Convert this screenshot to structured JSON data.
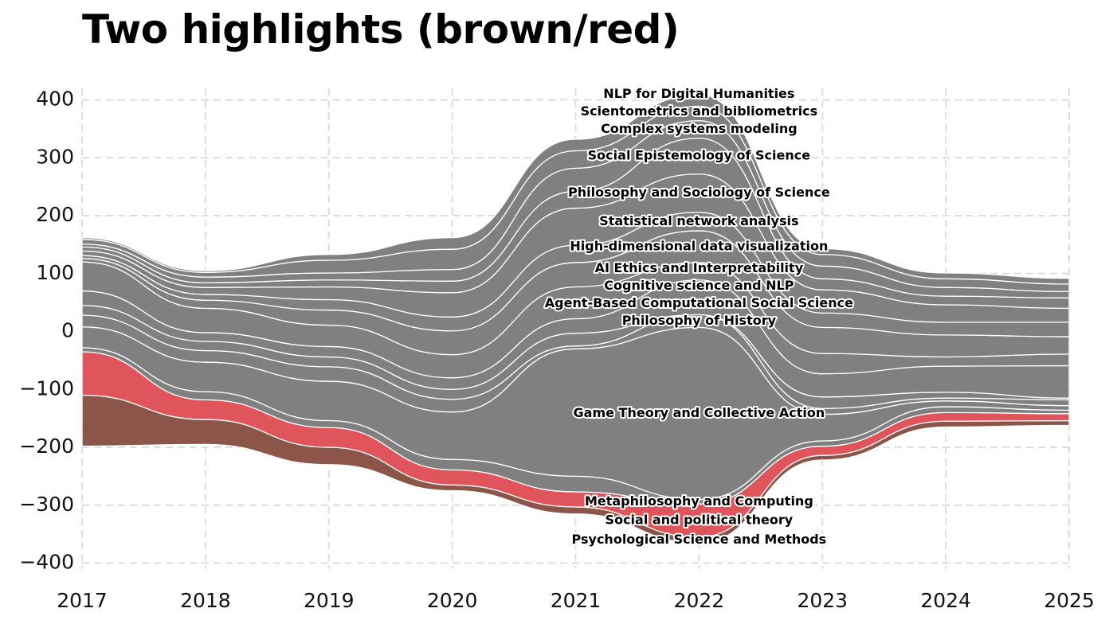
{
  "chart_data": {
    "type": "area",
    "subtype": "streamgraph",
    "title": "Two highlights (brown/red)",
    "x": [
      2017,
      2018,
      2019,
      2020,
      2021,
      2022,
      2023,
      2024,
      2025
    ],
    "xlim": [
      2017,
      2025
    ],
    "ylim": [
      -410,
      420
    ],
    "yticks": [
      400,
      300,
      200,
      100,
      0,
      -100,
      -200,
      -300,
      -400
    ],
    "grid": true,
    "baseline": [
      -198,
      -195,
      -230,
      -275,
      -315,
      -365,
      -222,
      -165,
      -162
    ],
    "series": [
      {
        "name": "Psychological Science and Methods",
        "color": "#8B5649",
        "values": [
          88,
          43,
          30,
          10,
          12,
          10,
          8,
          10,
          8
        ]
      },
      {
        "name": "Social and political theory",
        "color": "#E0555B",
        "values": [
          75,
          34,
          34,
          26,
          26,
          57,
          16,
          15,
          12
        ]
      },
      {
        "name": "Metaphilosophy and Computing",
        "color": "#808080",
        "values": [
          7,
          14,
          12,
          18,
          27,
          8,
          9,
          10,
          6
        ]
      },
      {
        "name": "Game Theory and Collective Action",
        "color": "#808080",
        "values": [
          36,
          51,
          68,
          82,
          220,
          297,
          46,
          10,
          8
        ]
      },
      {
        "name": "Philosophy of History",
        "color": "#808080",
        "values": [
          20,
          20,
          25,
          22,
          5,
          22,
          10,
          5,
          10
        ]
      },
      {
        "name": "Agent-Based Computational Social Science",
        "color": "#808080",
        "values": [
          17,
          16,
          17,
          17,
          22,
          0,
          20,
          10,
          3
        ]
      },
      {
        "name": "Cognitive science and NLP",
        "color": "#808080",
        "values": [
          25,
          15,
          18,
          20,
          25,
          60,
          40,
          45,
          56
        ]
      },
      {
        "name": "AI Ethics and Interpretability",
        "color": "#808080",
        "values": [
          50,
          42,
          37,
          40,
          55,
          30,
          35,
          16,
          20
        ]
      },
      {
        "name": "High-dimensional data visualization",
        "color": "#808080",
        "values": [
          6,
          14,
          26,
          41,
          42,
          55,
          45,
          38,
          30
        ]
      },
      {
        "name": "Statistical network analysis",
        "color": "#808080",
        "values": [
          5,
          10,
          18,
          24,
          30,
          32,
          25,
          22,
          25
        ]
      },
      {
        "name": "Philosophy and Sociology of Science",
        "color": "#808080",
        "values": [
          8,
          12,
          22,
          42,
          64,
          66,
          40,
          30,
          24
        ]
      },
      {
        "name": "Social Epistemology of Science",
        "color": "#808080",
        "values": [
          7,
          8,
          12,
          20,
          29,
          62,
          19,
          15,
          18
        ]
      },
      {
        "name": "Complex systems modeling",
        "color": "#808080",
        "values": [
          5,
          10,
          12,
          20,
          40,
          30,
          22,
          15,
          11
        ]
      },
      {
        "name": "Scientometrics and bibliometrics",
        "color": "#808080",
        "values": [
          8,
          8,
          22,
          35,
          30,
          25,
          20,
          15,
          13
        ]
      },
      {
        "name": "NLP for Digital Humanities",
        "color": "#808080",
        "values": [
          3,
          3,
          10,
          20,
          20,
          20,
          10,
          10,
          10
        ]
      }
    ]
  }
}
